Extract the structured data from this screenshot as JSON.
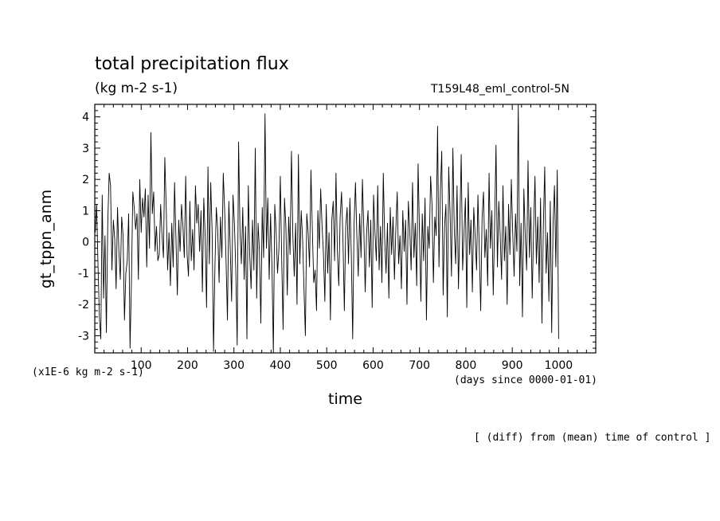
{
  "header": {
    "title": "total precipitation flux",
    "units": "(kg m-2 s-1)",
    "experiment": "T159L48_eml_control-5N"
  },
  "axes": {
    "y_label": "gt_tppn_anm",
    "x_label": "time",
    "scale_note": "(x1E-6 kg m-2 s-1)",
    "x_units": "(days since 0000-01-01)"
  },
  "footer": {
    "note": "[ (diff) from (mean) time of control ]"
  },
  "chart_data": {
    "type": "line",
    "title": "total precipitation flux",
    "subtitle": "(kg m-2 s-1)",
    "xlabel": "time",
    "ylabel": "gt_tppn_anm",
    "xlim": [
      0,
      1080
    ],
    "ylim": [
      -3.55,
      4.4
    ],
    "x_ticks": [
      100,
      200,
      300,
      400,
      500,
      600,
      700,
      800,
      900,
      1000
    ],
    "y_ticks": [
      -3,
      -2,
      -1,
      0,
      1,
      2,
      3,
      4
    ],
    "grid": false,
    "line_color": "#000000",
    "series": [
      {
        "x_start": 1,
        "x_step": 3,
        "values": [
          0.3,
          1.2,
          -0.8,
          -2.4,
          -3.1,
          1.5,
          -1.8,
          0.2,
          -2.9,
          0.6,
          2.2,
          1.8,
          -0.9,
          0.7,
          0.1,
          -1.5,
          1.1,
          -0.3,
          -1.2,
          0.8,
          0.2,
          -2.5,
          -1.0,
          -0.6,
          0.9,
          -3.4,
          -1.3,
          1.6,
          1.1,
          0.4,
          0.9,
          -1.2,
          2.0,
          0.3,
          1.4,
          0.8,
          1.7,
          -0.8,
          1.5,
          -0.2,
          3.5,
          0.9,
          1.6,
          -0.3,
          0.5,
          -0.6,
          -0.4,
          1.2,
          0.2,
          -0.5,
          2.7,
          1.1,
          -0.9,
          0.3,
          -1.4,
          0.6,
          -0.8,
          1.9,
          0.1,
          -1.7,
          0.7,
          -0.3,
          1.2,
          0.5,
          -0.5,
          2.1,
          -0.4,
          -1.1,
          1.3,
          -0.6,
          0.4,
          -0.9,
          1.8,
          0.6,
          1.2,
          -0.3,
          1.0,
          -1.6,
          1.4,
          0.2,
          -2.1,
          2.4,
          -0.7,
          1.9,
          0.3,
          -3.5,
          -0.8,
          1.1,
          0.4,
          -1.3,
          0.8,
          -0.5,
          2.2,
          1.0,
          -0.6,
          -2.5,
          1.3,
          -0.2,
          -1.9,
          1.5,
          0.6,
          -0.9,
          -3.3,
          3.2,
          0.4,
          -0.7,
          1.1,
          -1.2,
          0.5,
          -3.1,
          1.8,
          -0.4,
          -1.5,
          0.7,
          -0.9,
          3.0,
          -1.8,
          0.6,
          -0.3,
          -2.6,
          1.1,
          -0.5,
          4.1,
          -0.2,
          1.4,
          -1.2,
          0.9,
          -0.8,
          -3.6,
          1.2,
          0.3,
          -1.0,
          -0.2,
          2.1,
          -0.6,
          -2.8,
          1.4,
          0.5,
          -1.7,
          0.8,
          -0.4,
          2.9,
          0.2,
          -1.1,
          0.6,
          -2.0,
          2.8,
          -0.7,
          1.0,
          0.1,
          -1.5,
          -3.0,
          0.9,
          0.3,
          -0.8,
          2.3,
          0.4,
          -1.3,
          -0.9,
          -2.2,
          1.0,
          -0.2,
          1.7,
          0.5,
          -0.4,
          -1.9,
          1.2,
          -1.0,
          0.3,
          -2.5,
          0.7,
          1.3,
          -0.6,
          2.2,
          -0.3,
          -1.4,
          0.8,
          1.6,
          0.1,
          -2.2,
          0.5,
          1.1,
          -0.7,
          1.4,
          -0.4,
          -3.1,
          0.6,
          1.9,
          0.2,
          -1.1,
          0.9,
          -0.5,
          2.0,
          0.4,
          -1.6,
          0.3,
          1.0,
          -0.8,
          0.7,
          -2.1,
          1.5,
          0.3,
          -0.6,
          1.8,
          -0.9,
          0.5,
          -1.3,
          2.2,
          0.1,
          -1.0,
          0.6,
          -1.8,
          1.1,
          -0.4,
          0.8,
          -1.2,
          0.4,
          1.6,
          -0.7,
          0.2,
          -1.5,
          1.0,
          -0.3,
          0.7,
          -2.0,
          1.3,
          0.4,
          -0.9,
          1.9,
          -0.5,
          0.6,
          -1.4,
          2.5,
          0.3,
          -1.9,
          0.9,
          -0.6,
          1.4,
          -2.5,
          0.5,
          -0.2,
          2.1,
          1.2,
          -1.3,
          0.8,
          0.2,
          3.7,
          -0.8,
          1.6,
          2.9,
          -1.7,
          0.5,
          1.2,
          -2.4,
          2.4,
          0.9,
          -1.1,
          3.0,
          0.4,
          -0.7,
          1.8,
          -1.5,
          0.6,
          2.8,
          -0.9,
          0.3,
          1.4,
          -2.1,
          1.9,
          -0.4,
          0.7,
          -1.6,
          1.1,
          0.2,
          -0.9,
          1.5,
          -0.3,
          -2.2,
          0.8,
          1.6,
          -0.5,
          0.4,
          -1.4,
          2.2,
          -0.2,
          1.0,
          -1.7,
          0.6,
          3.1,
          -0.8,
          1.3,
          0.2,
          -1.2,
          1.8,
          -0.6,
          0.5,
          -2.0,
          1.2,
          -0.4,
          2.0,
          0.3,
          -1.1,
          0.9,
          -0.3,
          4.4,
          -1.4,
          0.6,
          -2.4,
          1.7,
          0.2,
          -0.9,
          2.6,
          -0.5,
          1.1,
          -1.8,
          0.4,
          2.1,
          -0.7,
          0.8,
          -1.3,
          1.4,
          -2.6,
          0.5,
          2.4,
          -1.0,
          0.3,
          -1.9,
          1.3,
          -2.9,
          0.6,
          1.8,
          -0.8,
          2.3,
          -3.1
        ]
      }
    ]
  }
}
